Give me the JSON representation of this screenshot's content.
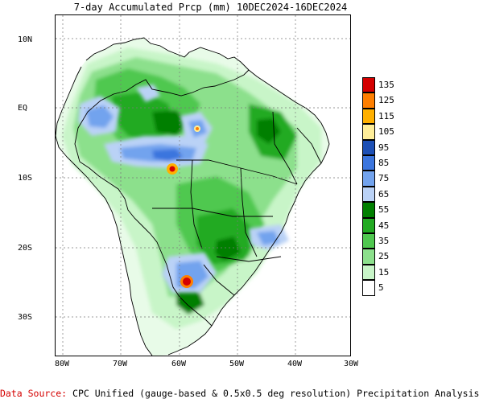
{
  "title": "7-day Accumulated Prcp (mm) 10DEC2024-16DEC2024",
  "footer": {
    "source_label": "Data Source:",
    "source_text": " CPC Unified (gauge-based & 0.5x0.5 deg resolution) Precipitation Analysis"
  },
  "lat_ticks": [
    "10N",
    "EQ",
    "10S",
    "20S",
    "30S"
  ],
  "lon_ticks": [
    "80W",
    "70W",
    "60W",
    "50W",
    "40W",
    "30W"
  ],
  "legend": {
    "labels": [
      "135",
      "125",
      "115",
      "105",
      "95",
      "85",
      "75",
      "65",
      "55",
      "45",
      "35",
      "25",
      "15",
      "5"
    ],
    "colors": [
      "#d40000",
      "#ff7f00",
      "#ffb000",
      "#ffee99",
      "#1c4fb5",
      "#3b75de",
      "#72a3ee",
      "#bad2f6",
      "#007f00",
      "#22aa22",
      "#50c850",
      "#8ce08c",
      "#c8f5c8",
      "#ffffff"
    ]
  }
}
